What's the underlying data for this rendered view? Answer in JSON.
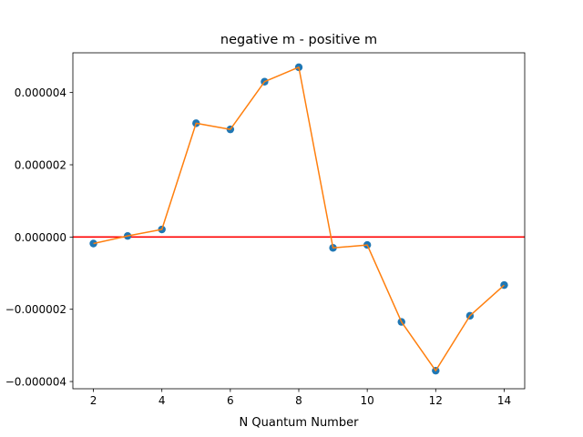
{
  "chart_data": {
    "type": "scatter",
    "title": "negative m - positive m",
    "xlabel": "N Quantum Number",
    "ylabel": "",
    "xlim": [
      1.4,
      14.6
    ],
    "ylim": [
      -4.2e-06,
      5.1e-06
    ],
    "xticks": [
      2,
      4,
      6,
      8,
      10,
      12,
      14
    ],
    "yticks": [
      -4e-06,
      -2e-06,
      0.0,
      2e-06,
      4e-06
    ],
    "ytick_labels": [
      "−0.000004",
      "−0.000002",
      "0.000000",
      "0.000002",
      "0.000004"
    ],
    "grid": false,
    "legend": "none",
    "series": [
      {
        "style": "markers",
        "color": "#1f77b4",
        "x": [
          2,
          3,
          4,
          5,
          6,
          7,
          8,
          9,
          10,
          11,
          12,
          13,
          14
        ],
        "y": [
          -1.8e-07,
          3e-08,
          2.1e-07,
          3.15e-06,
          2.98e-06,
          4.3e-06,
          4.7e-06,
          -3e-07,
          -2.2e-07,
          -2.35e-06,
          -3.7e-06,
          -2.18e-06,
          -1.33e-06
        ]
      },
      {
        "style": "line",
        "color": "#ff7f0e",
        "x": [
          2,
          3,
          4,
          5,
          6,
          7,
          8,
          9,
          10,
          11,
          12,
          13,
          14
        ],
        "y": [
          -1.8e-07,
          3e-08,
          2.1e-07,
          3.15e-06,
          2.98e-06,
          4.3e-06,
          4.7e-06,
          -3e-07,
          -2.2e-07,
          -2.35e-06,
          -3.7e-06,
          -2.18e-06,
          -1.33e-06
        ]
      }
    ],
    "reference_lines": [
      {
        "orientation": "horizontal",
        "y": 0.0,
        "color": "#ff0000"
      }
    ]
  }
}
